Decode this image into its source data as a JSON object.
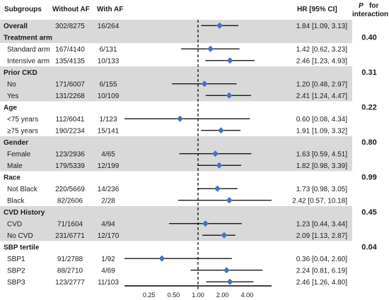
{
  "headers": {
    "subgroups": "Subgroups",
    "without_af": "Without AF",
    "with_af": "With AF",
    "hr": "HR [95% CI]",
    "p_line1": "P",
    "p_line1b": "for",
    "p_line2": "interaction"
  },
  "colors": {
    "band": "#d9d9d9",
    "marker": "#4472c4",
    "line": "#000000"
  },
  "chart_data": {
    "type": "forest",
    "x_scale": "log",
    "reference_line": 1.0,
    "x_ticks": [
      {
        "value": 0.25,
        "label": "0.25"
      },
      {
        "value": 0.5,
        "label": "0.50"
      },
      {
        "value": 1.0,
        "label": "1.00"
      },
      {
        "value": 2.0,
        "label": "2.00"
      },
      {
        "value": 4.0,
        "label": "4.00"
      }
    ],
    "x_range": [
      0.125,
      8
    ],
    "rows": [
      {
        "kind": "row",
        "label": "Overall",
        "bold": true,
        "shaded": true,
        "without_af": "302/8275",
        "with_af": "16/264",
        "hr": 1.84,
        "lo": 1.09,
        "hi": 3.13,
        "ci_text": "1.84 [1.09, 3.13]"
      },
      {
        "kind": "header",
        "label": "Treatment arm",
        "shaded": true,
        "p": "0.40"
      },
      {
        "kind": "row",
        "label": "Standard arm",
        "shaded": false,
        "without_af": "167/4140",
        "with_af": "6/131",
        "hr": 1.42,
        "lo": 0.62,
        "hi": 3.23,
        "ci_text": "1.42 [0.62, 3.23]"
      },
      {
        "kind": "row",
        "label": "Intensive arm",
        "shaded": false,
        "without_af": "135/4135",
        "with_af": "10/133",
        "hr": 2.46,
        "lo": 1.23,
        "hi": 4.93,
        "ci_text": "2.46 [1.23, 4.93]"
      },
      {
        "kind": "header",
        "label": "Prior CKD",
        "shaded": true,
        "p": "0.31"
      },
      {
        "kind": "row",
        "label": "No",
        "shaded": true,
        "without_af": "171/6007",
        "with_af": "6/155",
        "hr": 1.2,
        "lo": 0.48,
        "hi": 2.97,
        "ci_text": "1.20 [0.48, 2.97]"
      },
      {
        "kind": "row",
        "label": "Yes",
        "shaded": true,
        "without_af": "131/2268",
        "with_af": "10/109",
        "hr": 2.41,
        "lo": 1.24,
        "hi": 4.47,
        "ci_text": "2.41 [1.24, 4.47]"
      },
      {
        "kind": "header",
        "label": "Age",
        "shaded": false,
        "p": "0.22"
      },
      {
        "kind": "row",
        "label": "<75 years",
        "shaded": false,
        "without_af": "112/6041",
        "with_af": "1/123",
        "hr": 0.6,
        "lo": 0.08,
        "hi": 4.34,
        "ci_text": "0.60 [0.08, 4.34]"
      },
      {
        "kind": "row",
        "label": "≥75 years",
        "shaded": false,
        "without_af": "190/2234",
        "with_af": "15/141",
        "hr": 1.91,
        "lo": 1.09,
        "hi": 3.32,
        "ci_text": "1.91 [1.09, 3.32]"
      },
      {
        "kind": "header",
        "label": "Gender",
        "shaded": true,
        "p": "0.80"
      },
      {
        "kind": "row",
        "label": "Female",
        "shaded": true,
        "without_af": "123/2936",
        "with_af": "4/65",
        "hr": 1.63,
        "lo": 0.59,
        "hi": 4.51,
        "ci_text": "1.63 [0.59, 4.51]"
      },
      {
        "kind": "row",
        "label": "Male",
        "shaded": true,
        "without_af": "179/5339",
        "with_af": "12/199",
        "hr": 1.82,
        "lo": 0.98,
        "hi": 3.39,
        "ci_text": "1.82 [0.98, 3.39]"
      },
      {
        "kind": "header",
        "label": "Race",
        "shaded": false,
        "p": "0.99"
      },
      {
        "kind": "row",
        "label": "Not Black",
        "shaded": false,
        "without_af": "220/5669",
        "with_af": "14/236",
        "hr": 1.73,
        "lo": 0.98,
        "hi": 3.05,
        "ci_text": "1.73 [0.98, 3.05]"
      },
      {
        "kind": "row",
        "label": "Black",
        "shaded": false,
        "without_af": "82/2606",
        "with_af": "2/28",
        "hr": 2.42,
        "lo": 0.57,
        "hi": 10.18,
        "ci_text": "2.42 [0.57, 10.18]"
      },
      {
        "kind": "header",
        "label": "CVD History",
        "shaded": true,
        "p": "0.45"
      },
      {
        "kind": "row",
        "label": "CVD",
        "shaded": true,
        "without_af": "71/1604",
        "with_af": "4/94",
        "hr": 1.23,
        "lo": 0.44,
        "hi": 3.44,
        "ci_text": "1.23 [0.44, 3.44]"
      },
      {
        "kind": "row",
        "label": "No CVD",
        "shaded": true,
        "without_af": "231/6771",
        "with_af": "12/170",
        "hr": 2.09,
        "lo": 1.13,
        "hi": 2.87,
        "ci_text": "2.09 [1.13, 2.87]"
      },
      {
        "kind": "header",
        "label": "SBP tertile",
        "shaded": false,
        "p": "0.04"
      },
      {
        "kind": "row",
        "label": "SBP1",
        "shaded": false,
        "without_af": "91/2788",
        "with_af": "1/92",
        "hr": 0.36,
        "lo": 0.04,
        "hi": 2.6,
        "ci_text": "0.36 [0.04, 2.60]"
      },
      {
        "kind": "row",
        "label": "SBP2",
        "shaded": false,
        "without_af": "88/2710",
        "with_af": "4/69",
        "hr": 2.24,
        "lo": 0.81,
        "hi": 6.19,
        "ci_text": "2.24 [0.81, 6.19]"
      },
      {
        "kind": "row",
        "label": "SBP3",
        "shaded": false,
        "without_af": "123/2777",
        "with_af": "11/103",
        "hr": 2.46,
        "lo": 1.26,
        "hi": 4.8,
        "ci_text": "2.46 [1.26, 4.80]"
      }
    ]
  }
}
